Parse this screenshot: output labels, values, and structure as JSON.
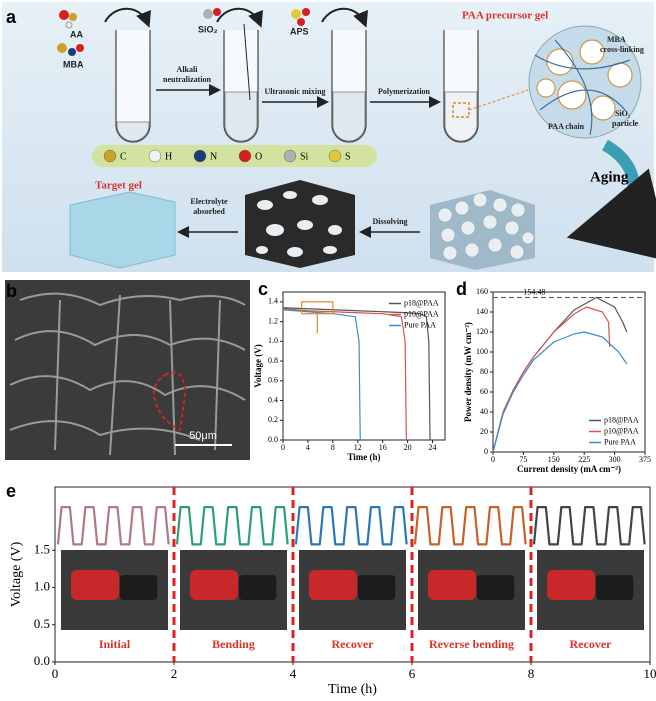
{
  "panel_labels": [
    "a",
    "b",
    "c",
    "d",
    "e"
  ],
  "panel_a": {
    "reagents": [
      "AA",
      "MBA",
      "SiO₂",
      "APS"
    ],
    "precursor_title": "PAA precursor gel",
    "steps": [
      [
        "Alkali",
        "neutralization"
      ],
      [
        "Ultrasonic mixing"
      ],
      [
        "Polymerization"
      ]
    ],
    "network_labels": [
      [
        "MBA",
        "cross-linking"
      ],
      [
        "PAA chain"
      ],
      [
        "SiO₂",
        "particle"
      ]
    ],
    "atoms": [
      "C",
      "H",
      "N",
      "O",
      "Si",
      "S"
    ],
    "atom_colors": [
      "#c9a227",
      "#f2f2f2",
      "#1f3c7a",
      "#d42020",
      "#b0b0b0",
      "#e3c93a"
    ],
    "aging": "Aging",
    "dissolving": "Dissolving",
    "electrolyte": [
      "Electrolyte",
      "absorbed"
    ],
    "target": "Target gel"
  },
  "panel_b": {
    "scale_bar": "50μm"
  },
  "chart_data": [
    {
      "type": "line",
      "xlabel": "Time (h)",
      "ylabel": "Voltage (V)",
      "xlim": [
        0,
        26
      ],
      "ylim": [
        0,
        1.5
      ],
      "xticks": [
        0,
        4,
        8,
        12,
        16,
        20,
        24
      ],
      "yticks": [
        {
          "value": 0,
          "label": "0.0"
        },
        0.2,
        0.4,
        0.6,
        0.8,
        {
          "value": 1,
          "label": "1.0"
        },
        1.2,
        1.4
      ],
      "legend": "upper right",
      "series": [
        {
          "name": "p18@PAA",
          "color": "#555555",
          "x": [
            0,
            4,
            8,
            12,
            16,
            20,
            22,
            23,
            23.4,
            23.6
          ],
          "values": [
            1.34,
            1.33,
            1.32,
            1.31,
            1.3,
            1.29,
            1.28,
            1.25,
            1.0,
            0.0
          ]
        },
        {
          "name": "p10@PAA",
          "color": "#d9534f",
          "x": [
            0,
            4,
            8,
            12,
            16,
            19,
            19.6,
            19.8
          ],
          "values": [
            1.33,
            1.31,
            1.3,
            1.29,
            1.28,
            1.25,
            1.0,
            0.0
          ]
        },
        {
          "name": "Pure PAA",
          "color": "#3a8fc9",
          "x": [
            0,
            4,
            8,
            11.6,
            12.2,
            12.4
          ],
          "values": [
            1.32,
            1.3,
            1.28,
            1.25,
            1.0,
            0.0
          ]
        }
      ]
    },
    {
      "type": "line",
      "xlabel": "Current density (mA cm⁻²)",
      "ylabel": "Power density (mW cm⁻²)",
      "xlim": [
        0,
        375
      ],
      "ylim": [
        0,
        160
      ],
      "xticks": [
        0,
        75,
        150,
        225,
        300,
        375
      ],
      "yticks": [
        0,
        20,
        40,
        60,
        80,
        100,
        120,
        140,
        160
      ],
      "hline": 154.48,
      "legend": "lower right",
      "series": [
        {
          "name": "p18@PAA",
          "color": "#555555",
          "x": [
            0,
            25,
            50,
            75,
            100,
            150,
            200,
            255,
            300,
            320,
            330
          ],
          "values": [
            0,
            40,
            62,
            80,
            95,
            120,
            142,
            154.48,
            145,
            130,
            120
          ]
        },
        {
          "name": "p10@PAA",
          "color": "#d9534f",
          "x": [
            0,
            25,
            50,
            75,
            100,
            150,
            200,
            230,
            270,
            285,
            288
          ],
          "values": [
            0,
            40,
            62,
            80,
            95,
            120,
            138,
            145,
            140,
            130,
            105
          ]
        },
        {
          "name": "Pure PAA",
          "color": "#3a8fc9",
          "x": [
            0,
            25,
            50,
            75,
            100,
            150,
            200,
            225,
            270,
            310,
            330
          ],
          "values": [
            0,
            38,
            60,
            77,
            92,
            110,
            118,
            120,
            115,
            100,
            88
          ]
        }
      ]
    },
    {
      "type": "line",
      "xlabel": "Time (h)",
      "ylabel": "Voltage (V)",
      "xlim": [
        0,
        10
      ],
      "ylim": [
        0,
        2.35
      ],
      "xticks": [
        0,
        2,
        4,
        6,
        8,
        10
      ],
      "yticks": [
        {
          "value": 0,
          "label": "0.0"
        },
        0.5,
        {
          "value": 1,
          "label": "1.0"
        },
        1.5
      ],
      "dividers": [
        2,
        4,
        6,
        8
      ],
      "divider_color": "#e02020",
      "segment_labels": [
        "Initial",
        "Bending",
        "Recover",
        "Reverse bending",
        "Recover"
      ],
      "series": [
        {
          "color": "#b07a80",
          "x": [
            0.05,
            0.11,
            0.25,
            0.31,
            0.45,
            0.51,
            0.65,
            0.71,
            0.85,
            0.91,
            1.05,
            1.11,
            1.25,
            1.31,
            1.45,
            1.51,
            1.65,
            1.71,
            1.85,
            1.91
          ],
          "values": [
            1.58,
            2.08,
            2.08,
            1.58,
            1.58,
            2.08,
            2.08,
            1.58,
            1.58,
            2.08,
            2.08,
            1.58,
            1.58,
            2.08,
            2.08,
            1.58,
            1.58,
            2.08,
            2.08,
            1.58
          ]
        },
        {
          "color": "#2aa07a",
          "x": [
            2.05,
            2.11,
            2.25,
            2.31,
            2.45,
            2.51,
            2.65,
            2.71,
            2.85,
            2.91,
            3.05,
            3.11,
            3.25,
            3.31,
            3.45,
            3.51,
            3.65,
            3.71,
            3.85,
            3.91
          ],
          "values": [
            1.58,
            2.08,
            2.08,
            1.58,
            1.58,
            2.08,
            2.08,
            1.58,
            1.58,
            2.08,
            2.08,
            1.58,
            1.58,
            2.08,
            2.08,
            1.58,
            1.58,
            2.08,
            2.08,
            1.58
          ]
        },
        {
          "color": "#2a78b8",
          "x": [
            4.05,
            4.11,
            4.25,
            4.31,
            4.45,
            4.51,
            4.65,
            4.71,
            4.85,
            4.91,
            5.05,
            5.11,
            5.25,
            5.31,
            5.45,
            5.51,
            5.65,
            5.71,
            5.85,
            5.91
          ],
          "values": [
            1.58,
            2.08,
            2.08,
            1.58,
            1.58,
            2.08,
            2.08,
            1.58,
            1.58,
            2.08,
            2.08,
            1.58,
            1.58,
            2.08,
            2.08,
            1.58,
            1.58,
            2.08,
            2.08,
            1.58
          ]
        },
        {
          "color": "#c8602a",
          "x": [
            6.05,
            6.11,
            6.25,
            6.31,
            6.45,
            6.51,
            6.65,
            6.71,
            6.85,
            6.91,
            7.05,
            7.11,
            7.25,
            7.31,
            7.45,
            7.51,
            7.65,
            7.71,
            7.85,
            7.91
          ],
          "values": [
            1.58,
            2.08,
            2.08,
            1.58,
            1.58,
            2.08,
            2.08,
            1.58,
            1.58,
            2.08,
            2.08,
            1.58,
            1.58,
            2.08,
            2.08,
            1.58,
            1.58,
            2.08,
            2.08,
            1.58
          ]
        },
        {
          "color": "#444444",
          "x": [
            8.05,
            8.11,
            8.25,
            8.31,
            8.45,
            8.51,
            8.65,
            8.71,
            8.85,
            8.91,
            9.05,
            9.11,
            9.25,
            9.31,
            9.45,
            9.51,
            9.65,
            9.71,
            9.85,
            9.91
          ],
          "values": [
            1.58,
            2.08,
            2.08,
            1.58,
            1.58,
            2.08,
            2.08,
            1.58,
            1.58,
            2.08,
            2.08,
            1.58,
            1.58,
            2.08,
            2.08,
            1.58,
            1.58,
            2.08,
            2.08,
            1.58
          ]
        }
      ]
    }
  ]
}
